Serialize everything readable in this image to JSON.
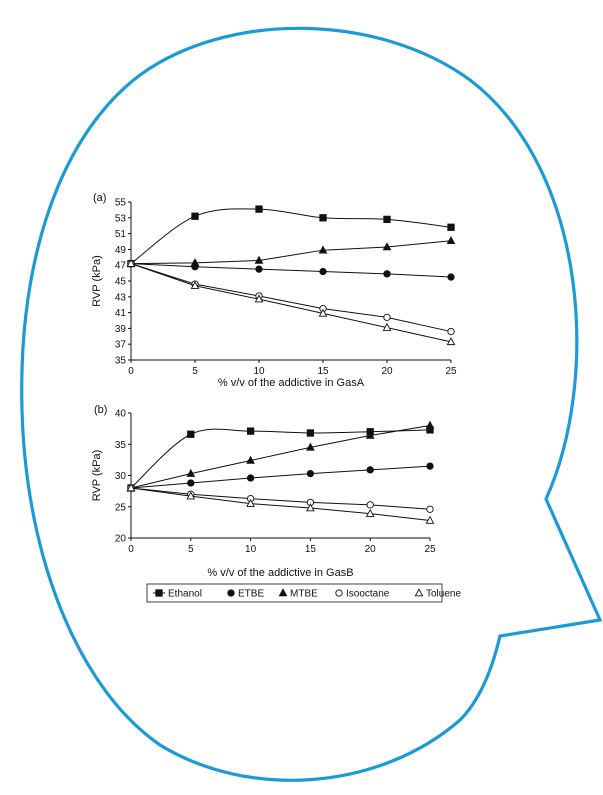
{
  "colors": {
    "bubble_outline": "#1a9ad6",
    "ink": "#111111"
  },
  "chart_data": [
    {
      "type": "line",
      "panel_label": "(a)",
      "xlabel": "% v/v of the addictive in GasA",
      "ylabel": "RVP (kPa)",
      "xlim": [
        0,
        25
      ],
      "ylim": [
        35,
        55
      ],
      "x_ticks": [
        "0",
        "5",
        "10",
        "15",
        "20",
        "25"
      ],
      "y_ticks": [
        "35",
        "37",
        "39",
        "41",
        "43",
        "45",
        "47",
        "49",
        "51",
        "53",
        "55"
      ],
      "x": [
        0,
        5,
        10,
        15,
        20,
        25
      ],
      "series": [
        {
          "name": "Ethanol",
          "marker": "square-filled",
          "values": [
            47.2,
            53.2,
            54.1,
            53.0,
            52.8,
            51.8
          ]
        },
        {
          "name": "ETBE",
          "marker": "circle-filled",
          "values": [
            47.2,
            46.8,
            46.5,
            46.2,
            45.9,
            45.5
          ]
        },
        {
          "name": "MTBE",
          "marker": "triangle-filled",
          "values": [
            47.2,
            47.3,
            47.6,
            48.9,
            49.3,
            50.1
          ]
        },
        {
          "name": "Isooctane",
          "marker": "circle-open",
          "values": [
            47.2,
            44.6,
            43.1,
            41.5,
            40.4,
            38.6
          ]
        },
        {
          "name": "Toluene",
          "marker": "triangle-open",
          "values": [
            47.2,
            44.4,
            42.7,
            40.9,
            39.1,
            37.3
          ]
        }
      ]
    },
    {
      "type": "line",
      "panel_label": "(b)",
      "xlabel": "% v/v of the addictive in GasB",
      "ylabel": "RVP (kPa)",
      "xlim": [
        0,
        25
      ],
      "ylim": [
        20,
        40
      ],
      "x_ticks": [
        "0",
        "5",
        "10",
        "15",
        "20",
        "25"
      ],
      "y_ticks": [
        "20",
        "25",
        "30",
        "35",
        "40"
      ],
      "x": [
        0,
        5,
        10,
        15,
        20,
        25
      ],
      "series": [
        {
          "name": "Ethanol",
          "marker": "square-filled",
          "values": [
            28.0,
            36.6,
            37.1,
            36.8,
            37.0,
            37.3
          ]
        },
        {
          "name": "ETBE",
          "marker": "circle-filled",
          "values": [
            28.0,
            28.8,
            29.6,
            30.3,
            30.9,
            31.5
          ]
        },
        {
          "name": "MTBE",
          "marker": "triangle-filled",
          "values": [
            28.0,
            30.3,
            32.4,
            34.5,
            36.4,
            38.0
          ]
        },
        {
          "name": "Isooctane",
          "marker": "circle-open",
          "values": [
            28.0,
            27.0,
            26.3,
            25.7,
            25.3,
            24.6
          ]
        },
        {
          "name": "Toluene",
          "marker": "triangle-open",
          "values": [
            28.0,
            26.7,
            25.5,
            24.8,
            23.9,
            22.8
          ]
        }
      ],
      "legend": "bottom"
    }
  ]
}
